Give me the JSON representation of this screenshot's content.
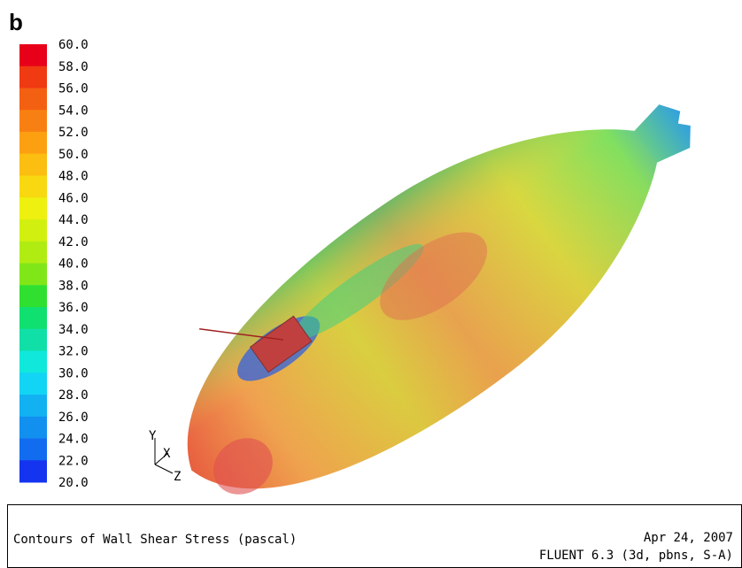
{
  "panel_label": "b",
  "colorbar": {
    "labels": [
      "60.0",
      "58.0",
      "56.0",
      "54.0",
      "52.0",
      "50.0",
      "48.0",
      "46.0",
      "44.0",
      "42.0",
      "40.0",
      "38.0",
      "36.0",
      "34.0",
      "32.0",
      "30.0",
      "28.0",
      "26.0",
      "24.0",
      "22.0",
      "20.0"
    ],
    "colors": [
      "#e8001a",
      "#f03a12",
      "#f46012",
      "#f88012",
      "#fca012",
      "#fcbe10",
      "#f8d810",
      "#eef010",
      "#d2f010",
      "#b0ec12",
      "#80e618",
      "#30e030",
      "#10e070",
      "#10e0a8",
      "#10e8dc",
      "#12d4f4",
      "#12b2f2",
      "#1290f0",
      "#126cf0",
      "#1434f0"
    ]
  },
  "axes_triad": {
    "y": "Y",
    "x": "X",
    "z": "Z"
  },
  "footer": {
    "caption": "Contours of Wall Shear Stress (pascal)",
    "date": "Apr 24, 2007",
    "solver": "FLUENT 6.3 (3d, pbns, S-A)"
  }
}
